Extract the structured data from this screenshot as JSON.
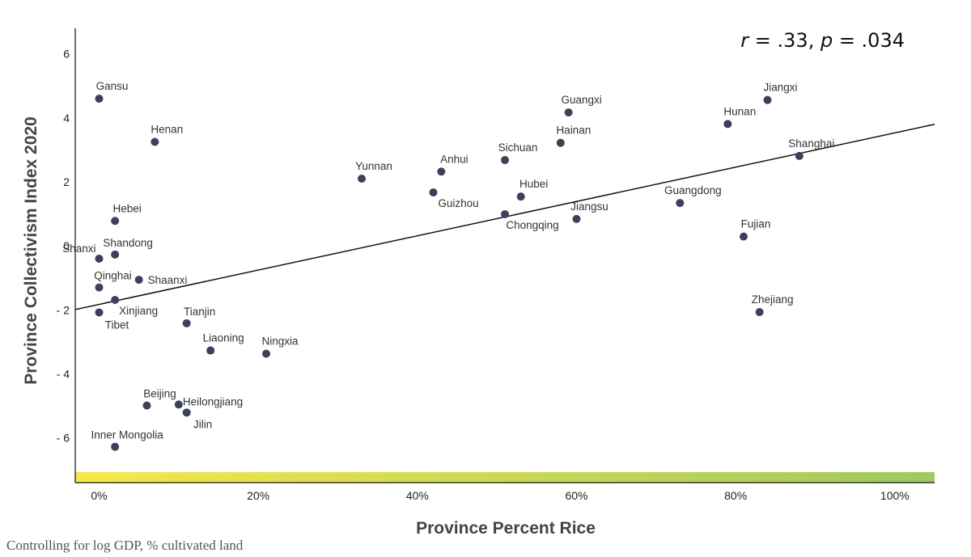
{
  "chart_data": {
    "type": "scatter",
    "title": "",
    "xlabel": "Province Percent Rice",
    "ylabel": "Province Collectivism Index 2020",
    "xlim": [
      -0.03,
      1.05
    ],
    "ylim": [
      -7.4,
      6.8
    ],
    "x_ticks": [
      0,
      0.2,
      0.4,
      0.6,
      0.8,
      1.0
    ],
    "x_tick_labels": [
      "0%",
      "20%",
      "40%",
      "60%",
      "80%",
      "100%"
    ],
    "y_ticks": [
      6,
      4,
      2,
      0,
      -2,
      -4,
      -6
    ],
    "y_tick_labels": [
      "6",
      "4",
      "2",
      "0",
      "- 2",
      "- 4",
      "- 6"
    ],
    "annotation_r_label": "r",
    "annotation_r_value": " = .33, ",
    "annotation_p_label": "p",
    "annotation_p_value": " = .034",
    "footnote": "Controlling for log GDP, % cultivated land",
    "gradient_colors": [
      "#f7e84a",
      "#9fc95e"
    ],
    "point_color": "#3a4259",
    "fit_line": {
      "x": [
        -0.03,
        1.05
      ],
      "y": [
        -1.99,
        3.8
      ]
    },
    "points": [
      {
        "name": "Gansu",
        "x": 0.0,
        "y": 4.6
      },
      {
        "name": "Henan",
        "x": 0.07,
        "y": 3.25
      },
      {
        "name": "Hebei",
        "x": 0.02,
        "y": 0.78
      },
      {
        "name": "Shanxi",
        "x": 0.0,
        "y": -0.4
      },
      {
        "name": "Shandong",
        "x": 0.02,
        "y": -0.27
      },
      {
        "name": "Qinghai",
        "x": 0.0,
        "y": -1.3
      },
      {
        "name": "Shaanxi",
        "x": 0.05,
        "y": -1.06
      },
      {
        "name": "Xinjiang",
        "x": 0.02,
        "y": -1.69
      },
      {
        "name": "Tibet",
        "x": 0.0,
        "y": -2.08
      },
      {
        "name": "Tianjin",
        "x": 0.11,
        "y": -2.42
      },
      {
        "name": "Liaoning",
        "x": 0.14,
        "y": -3.27
      },
      {
        "name": "Ningxia",
        "x": 0.21,
        "y": -3.37
      },
      {
        "name": "Beijing",
        "x": 0.06,
        "y": -4.99
      },
      {
        "name": "Heilongjiang",
        "x": 0.1,
        "y": -4.96
      },
      {
        "name": "Jilin",
        "x": 0.11,
        "y": -5.21
      },
      {
        "name": "Inner Mongolia",
        "x": 0.02,
        "y": -6.28
      },
      {
        "name": "Yunnan",
        "x": 0.33,
        "y": 2.1
      },
      {
        "name": "Anhui",
        "x": 0.43,
        "y": 2.32
      },
      {
        "name": "Guizhou",
        "x": 0.42,
        "y": 1.67
      },
      {
        "name": "Sichuan",
        "x": 0.51,
        "y": 2.68
      },
      {
        "name": "Hubei",
        "x": 0.53,
        "y": 1.54
      },
      {
        "name": "Chongqing",
        "x": 0.51,
        "y": 0.99
      },
      {
        "name": "Jiangsu",
        "x": 0.6,
        "y": 0.84
      },
      {
        "name": "Guangxi",
        "x": 0.59,
        "y": 4.17
      },
      {
        "name": "Hainan",
        "x": 0.58,
        "y": 3.22
      },
      {
        "name": "Guangdong",
        "x": 0.73,
        "y": 1.34
      },
      {
        "name": "Hunan",
        "x": 0.79,
        "y": 3.81
      },
      {
        "name": "Jiangxi",
        "x": 0.84,
        "y": 4.56
      },
      {
        "name": "Shanghai",
        "x": 0.88,
        "y": 2.81
      },
      {
        "name": "Fujian",
        "x": 0.81,
        "y": 0.29
      },
      {
        "name": "Zhejiang",
        "x": 0.83,
        "y": -2.07
      }
    ]
  }
}
